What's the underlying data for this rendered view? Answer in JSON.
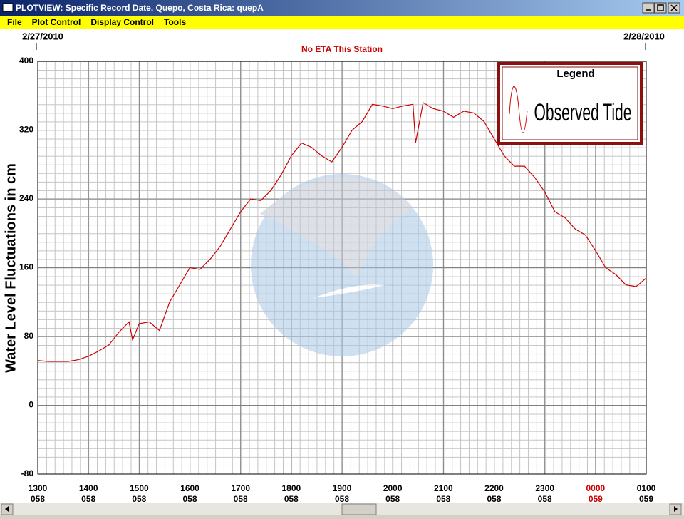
{
  "window": {
    "title": "PLOTVIEW: Specific Record Date, Quepo, Costa Rica: quepA"
  },
  "menu": [
    "File",
    "Plot Control",
    "Display Control",
    "Tools"
  ],
  "chart_data": {
    "type": "line",
    "subtitle": "No ETA This Station",
    "subtitle_color": "#cc0000",
    "date_labels": [
      "2/27/2010",
      "2/28/2010"
    ],
    "y_label": "Water Level Fluctuations in cm",
    "legend_title": "Legend",
    "grid": true,
    "xlim": [
      13,
      25
    ],
    "xticks": [
      {
        "value": 13,
        "label": "1300",
        "sublabel": "058",
        "color": "#000000"
      },
      {
        "value": 14,
        "label": "1400",
        "sublabel": "058",
        "color": "#000000"
      },
      {
        "value": 15,
        "label": "1500",
        "sublabel": "058",
        "color": "#000000"
      },
      {
        "value": 16,
        "label": "1600",
        "sublabel": "058",
        "color": "#000000"
      },
      {
        "value": 17,
        "label": "1700",
        "sublabel": "058",
        "color": "#000000"
      },
      {
        "value": 18,
        "label": "1800",
        "sublabel": "058",
        "color": "#000000"
      },
      {
        "value": 19,
        "label": "1900",
        "sublabel": "058",
        "color": "#000000"
      },
      {
        "value": 20,
        "label": "2000",
        "sublabel": "058",
        "color": "#000000"
      },
      {
        "value": 21,
        "label": "2100",
        "sublabel": "058",
        "color": "#000000"
      },
      {
        "value": 22,
        "label": "2200",
        "sublabel": "058",
        "color": "#000000"
      },
      {
        "value": 23,
        "label": "2300",
        "sublabel": "058",
        "color": "#000000"
      },
      {
        "value": 24,
        "label": "0000",
        "sublabel": "059",
        "color": "#cc0000"
      },
      {
        "value": 25,
        "label": "0100",
        "sublabel": "059",
        "color": "#000000"
      }
    ],
    "ylim": [
      -80,
      400
    ],
    "yticks": [
      -80,
      0,
      80,
      160,
      240,
      320,
      400
    ],
    "x": [
      13.0,
      13.2,
      13.4,
      13.6,
      13.8,
      14.0,
      14.2,
      14.4,
      14.6,
      14.8,
      14.87,
      15.0,
      15.2,
      15.4,
      15.6,
      15.8,
      16.0,
      16.2,
      16.4,
      16.6,
      16.8,
      17.0,
      17.2,
      17.4,
      17.6,
      17.8,
      18.0,
      18.2,
      18.4,
      18.6,
      18.8,
      19.0,
      19.2,
      19.4,
      19.6,
      19.8,
      20.0,
      20.2,
      20.4,
      20.45,
      20.6,
      20.8,
      21.0,
      21.2,
      21.4,
      21.6,
      21.8,
      22.0,
      22.2,
      22.4,
      22.6,
      22.8,
      23.0,
      23.2,
      23.4,
      23.6,
      23.8,
      24.0,
      24.2,
      24.4,
      24.6,
      24.8,
      25.0
    ],
    "series": [
      {
        "name": "Observed Tide",
        "color": "#cc0000",
        "values": [
          52,
          51,
          51,
          51,
          53,
          57,
          63,
          70,
          85,
          97,
          76,
          95,
          97,
          87,
          120,
          140,
          160,
          158,
          170,
          185,
          205,
          225,
          240,
          238,
          250,
          268,
          290,
          305,
          300,
          290,
          283,
          300,
          320,
          330,
          350,
          348,
          345,
          348,
          350,
          305,
          352,
          345,
          342,
          335,
          342,
          340,
          330,
          310,
          290,
          278,
          278,
          265,
          248,
          225,
          218,
          205,
          198,
          180,
          160,
          152,
          140,
          138,
          148
        ]
      }
    ]
  }
}
